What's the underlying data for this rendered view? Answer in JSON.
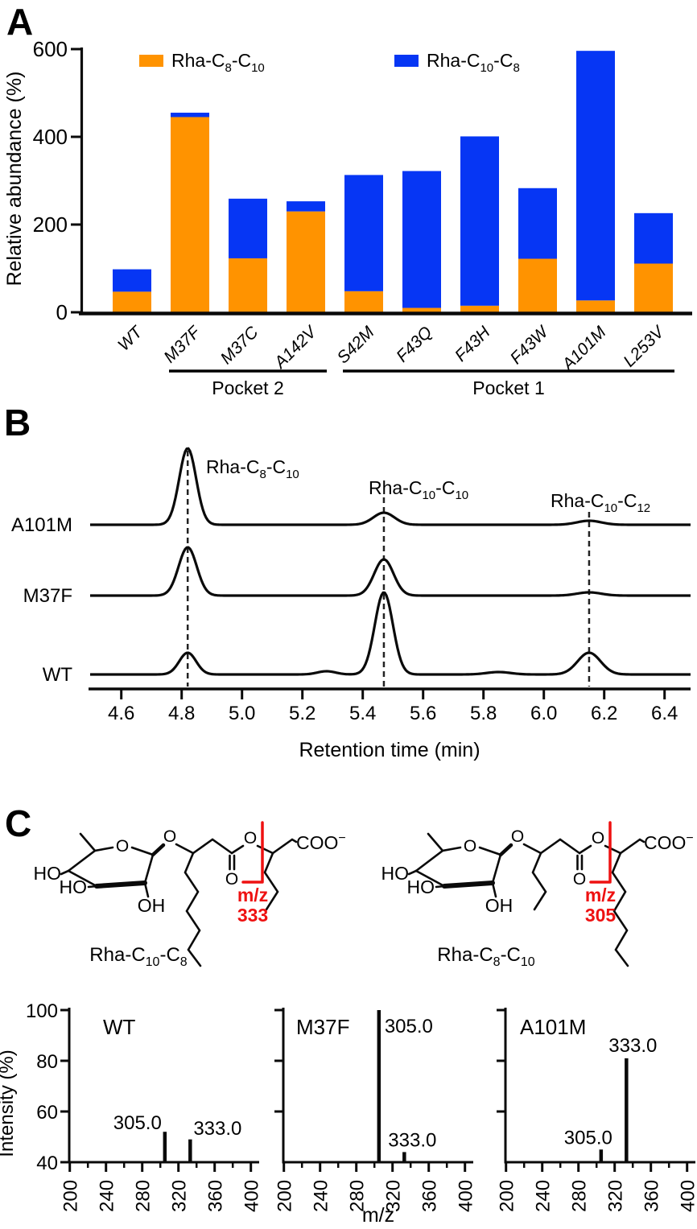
{
  "letters": {
    "a": "A",
    "b": "B",
    "c": "C"
  },
  "chart_data": [
    {
      "type": "bar",
      "stacked": true,
      "ylabel": "Relative abundance (%)",
      "ylim": [
        0,
        600
      ],
      "yticks": [
        0,
        200,
        400,
        600
      ],
      "grid": false,
      "legend_position": "top-inside",
      "categories": [
        "WT",
        "M37F",
        "M37C",
        "A142V",
        "S42M",
        "F43Q",
        "F43H",
        "F43W",
        "A101M",
        "L253V"
      ],
      "series": [
        {
          "name_parts": [
            "Rha-C",
            "8",
            "-C",
            "10"
          ],
          "color": "#FF9300",
          "values": [
            47,
            445,
            123,
            230,
            48,
            10,
            15,
            122,
            27,
            111
          ]
        },
        {
          "name_parts": [
            "Rha-C",
            "10",
            "-C",
            "8"
          ],
          "color": "#0636F4",
          "values": [
            51,
            10,
            136,
            23,
            265,
            312,
            386,
            161,
            569,
            115
          ]
        }
      ],
      "groups": [
        {
          "label": "Pocket 2",
          "from": 1,
          "to": 3
        },
        {
          "label": "Pocket 1",
          "from": 4,
          "to": 9
        }
      ]
    },
    {
      "type": "line",
      "subtype": "chromatogram-stack",
      "xlabel": "Retention time (min)",
      "x_range": [
        4.49,
        6.49
      ],
      "x_ticks": [
        "4.6",
        "4.8",
        "5.0",
        "5.2",
        "5.4",
        "5.6",
        "5.8",
        "6.0",
        "6.2",
        "6.4"
      ],
      "marker_times": [
        4.82,
        5.47,
        6.15
      ],
      "peak_annotations": [
        {
          "parts": [
            "Rha-C",
            "8",
            "-C",
            "10"
          ]
        },
        {
          "parts": [
            "Rha-C",
            "10",
            "-C",
            "10"
          ]
        },
        {
          "parts": [
            "Rha-C",
            "10",
            "-C",
            "12"
          ]
        }
      ],
      "traces": [
        {
          "label": "A101M",
          "peaks": [
            {
              "t": 4.82,
              "h": 95,
              "sd": 0.028
            },
            {
              "t": 5.47,
              "h": 15,
              "sd": 0.035
            },
            {
              "t": 6.15,
              "h": 5,
              "sd": 0.04
            }
          ]
        },
        {
          "label": "M37F",
          "peaks": [
            {
              "t": 4.82,
              "h": 60,
              "sd": 0.03
            },
            {
              "t": 5.47,
              "h": 45,
              "sd": 0.032
            },
            {
              "t": 6.15,
              "h": 4,
              "sd": 0.04
            }
          ]
        },
        {
          "label": "WT",
          "peaks": [
            {
              "t": 4.82,
              "h": 27,
              "sd": 0.028
            },
            {
              "t": 5.28,
              "h": 4,
              "sd": 0.03
            },
            {
              "t": 5.47,
              "h": 102,
              "sd": 0.03
            },
            {
              "t": 5.85,
              "h": 3,
              "sd": 0.04
            },
            {
              "t": 6.15,
              "h": 27,
              "sd": 0.038
            }
          ]
        }
      ]
    },
    {
      "type": "bar",
      "subtype": "mass-spectra",
      "ylabel": "Intensity (%)",
      "xlabel": "m/z",
      "ylim": [
        40,
        100
      ],
      "yticks": [
        40,
        60,
        80,
        100
      ],
      "xticks": [
        200,
        240,
        280,
        320,
        360,
        400
      ],
      "panels": [
        {
          "label": "WT",
          "peaks": [
            {
              "mz": 305.0,
              "intensity": 52,
              "annotation": "305.0"
            },
            {
              "mz": 333.0,
              "intensity": 49,
              "annotation": "333.0"
            }
          ]
        },
        {
          "label": "M37F",
          "peaks": [
            {
              "mz": 305.0,
              "intensity": 100,
              "annotation": "305.0"
            },
            {
              "mz": 333.0,
              "intensity": 44,
              "annotation": "333.0"
            }
          ]
        },
        {
          "label": "A101M",
          "peaks": [
            {
              "mz": 305.0,
              "intensity": 45,
              "annotation": "305.0"
            },
            {
              "mz": 333.0,
              "intensity": 81,
              "annotation": "333.0"
            }
          ]
        }
      ]
    }
  ],
  "structures": {
    "items": [
      {
        "name_parts": [
          "Rha-C",
          "10",
          "-C",
          "8"
        ],
        "fragment_label": "m/z",
        "fragment_mz": "333",
        "labels": {
          "ho_top": "HO",
          "ho_bottom": "HO",
          "oh": "OH",
          "ring_o": "O",
          "glycosidic_o": "O",
          "carbonyl_o": "O",
          "ester_o": "O",
          "carboxylate": "COO",
          "charge": "−"
        }
      },
      {
        "name_parts": [
          "Rha-C",
          "8",
          "-C",
          "10"
        ],
        "fragment_label": "m/z",
        "fragment_mz": "305",
        "labels": {
          "ho_top": "HO",
          "ho_bottom": "HO",
          "oh": "OH",
          "ring_o": "O",
          "glycosidic_o": "O",
          "carbonyl_o": "O",
          "ester_o": "O",
          "carboxylate": "COO",
          "charge": "−"
        }
      }
    ]
  },
  "colors": {
    "accent_orange": "#FF9300",
    "accent_blue": "#0636F4",
    "fragment_red": "#EE1111",
    "ink": "#0a0a0a"
  }
}
